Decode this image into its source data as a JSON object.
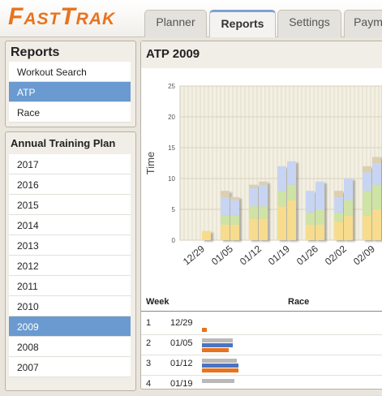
{
  "header": {
    "logo": "FastTrak",
    "tabs": [
      "Planner",
      "Reports",
      "Settings",
      "Paym"
    ],
    "active_tab": 1
  },
  "reports_panel": {
    "title": "Reports",
    "items": [
      "Workout Search",
      "ATP",
      "Race"
    ],
    "selected": 1
  },
  "plan_panel": {
    "title": "Annual Training Plan",
    "items": [
      "2017",
      "2016",
      "2015",
      "2014",
      "2013",
      "2012",
      "2011",
      "2010",
      "2009",
      "2008",
      "2007"
    ],
    "selected": 8
  },
  "main": {
    "title": "ATP 2009",
    "chart_data": {
      "type": "bar",
      "stacked": true,
      "y_label": "Time",
      "categories": [
        "12/29",
        "01/05",
        "01/12",
        "01/19",
        "01/26",
        "02/02",
        "02/09"
      ],
      "ylim": [
        0,
        25
      ],
      "yticks": [
        0,
        5,
        10,
        15,
        20,
        25
      ],
      "grid": true,
      "series": [
        {
          "color": "#f7dc8e",
          "values": [
            [
              0,
              1.5
            ],
            [
              2.5,
              2.5
            ],
            [
              3.5,
              3.5
            ],
            [
              5.5,
              6.5
            ],
            [
              2.5,
              2.5
            ],
            [
              3,
              4
            ],
            [
              4,
              5
            ]
          ]
        },
        {
          "color": "#cfe3a6",
          "values": [
            [
              0,
              0
            ],
            [
              1.5,
              1.5
            ],
            [
              2,
              2
            ],
            [
              2.5,
              2.5
            ],
            [
              2,
              2.5
            ],
            [
              1.5,
              2.5
            ],
            [
              4,
              4
            ]
          ]
        },
        {
          "color": "#c8d5f2",
          "values": [
            [
              0,
              0
            ],
            [
              3,
              2.5
            ],
            [
              3,
              3.5
            ],
            [
              4,
              3.8
            ],
            [
              3.5,
              4.5
            ],
            [
              2.5,
              3.5
            ],
            [
              3,
              3.5
            ]
          ]
        },
        {
          "color": "#dccfb2",
          "values": [
            [
              0,
              0
            ],
            [
              1,
              0.5
            ],
            [
              0.5,
              0.5
            ],
            [
              0,
              0
            ],
            [
              0,
              0
            ],
            [
              1,
              0
            ],
            [
              1,
              1
            ]
          ]
        }
      ]
    },
    "table": {
      "columns": [
        "Week",
        "Race"
      ],
      "bar_colors": [
        "#b9b9b9",
        "#4a74c4",
        "#e8731e"
      ],
      "rows": [
        {
          "week": "1",
          "date": "12/29",
          "bars": [
            0,
            0,
            1.2
          ]
        },
        {
          "week": "2",
          "date": "01/05",
          "bars": [
            7.5,
            7.5,
            6.5
          ]
        },
        {
          "week": "3",
          "date": "01/12",
          "bars": [
            8.5,
            9,
            9
          ]
        },
        {
          "week": "4",
          "date": "01/19",
          "bars": [
            8,
            0,
            0
          ]
        }
      ]
    }
  }
}
